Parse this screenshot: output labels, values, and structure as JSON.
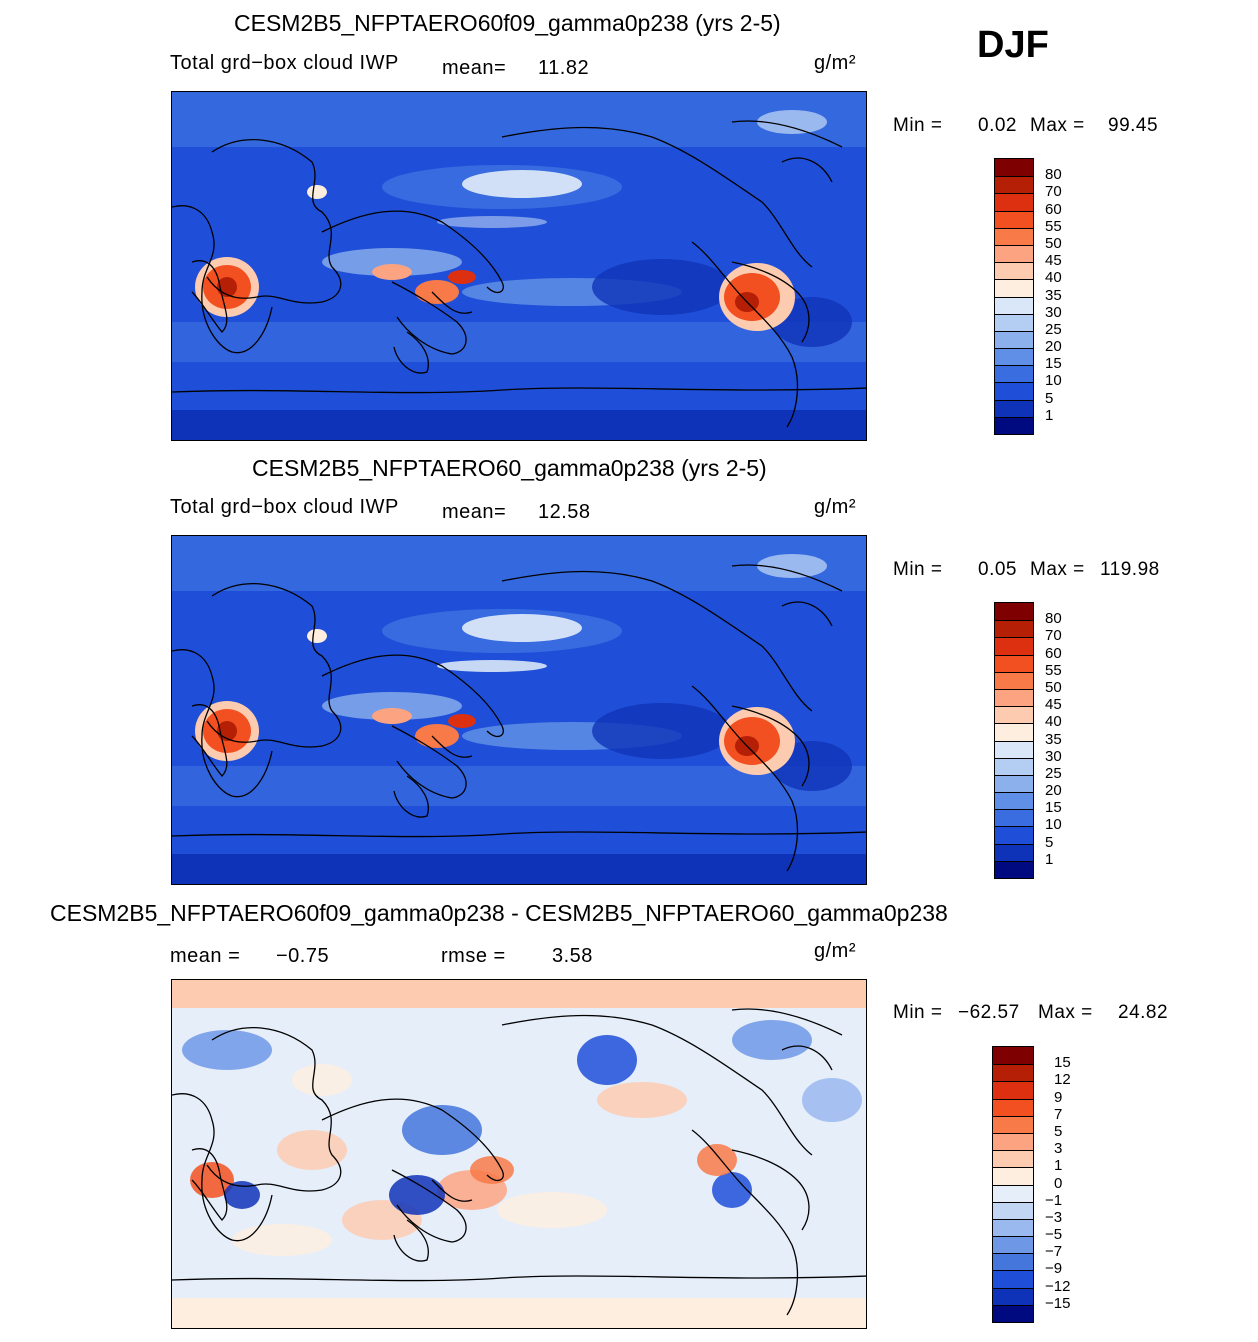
{
  "season": "DJF",
  "panels": [
    {
      "title": "CESM2B5_NFPTAERO60f09_gamma0p238 (yrs 2-5)",
      "variable": "Total grd−box cloud IWP",
      "mean_label": "mean=",
      "mean_value": "11.82",
      "units": "g/m²",
      "min_label": "Min =",
      "min_value": "0.02",
      "max_label": "Max =",
      "max_value": "99.45"
    },
    {
      "title": "CESM2B5_NFPTAERO60_gamma0p238 (yrs 2-5)",
      "variable": "Total grd−box cloud IWP",
      "mean_label": "mean=",
      "mean_value": "12.58",
      "units": "g/m²",
      "min_label": "Min =",
      "min_value": "0.05",
      "max_label": "Max =",
      "max_value": "119.98"
    },
    {
      "title": "CESM2B5_NFPTAERO60f09_gamma0p238 - CESM2B5_NFPTAERO60_gamma0p238",
      "mean_label": "mean =",
      "mean_value": "−0.75",
      "rmse_label": "rmse =",
      "rmse_value": "3.58",
      "units": "g/m²",
      "min_label": "Min =",
      "min_value": "−62.57",
      "max_label": "Max =",
      "max_value": "24.82"
    }
  ],
  "colorbar_abs": {
    "labels": [
      "80",
      "70",
      "60",
      "55",
      "50",
      "45",
      "40",
      "35",
      "30",
      "25",
      "20",
      "15",
      "10",
      "5",
      "1"
    ],
    "colors": [
      "#7f0000",
      "#b41f05",
      "#dc3010",
      "#f25020",
      "#f87a48",
      "#fca482",
      "#fdcbb0",
      "#fdeee0",
      "#d9e7f8",
      "#b4cdf2",
      "#8bb0ec",
      "#5f8fe6",
      "#3a6ee0",
      "#1f4fd8",
      "#0f33b8",
      "#000a80"
    ]
  },
  "colorbar_diff": {
    "labels": [
      "15",
      "12",
      "9",
      "7",
      "5",
      "3",
      "1",
      "0",
      "−1",
      "−3",
      "−5",
      "−7",
      "−9",
      "−12",
      "−15"
    ],
    "colors": [
      "#7f0000",
      "#b41f05",
      "#dc3010",
      "#f25020",
      "#f87a48",
      "#fca482",
      "#fdcbb0",
      "#fdeee0",
      "#e6eefa",
      "#c2d6f4",
      "#9ab9ee",
      "#6e98e6",
      "#4476dc",
      "#1f4fd8",
      "#0f33b8",
      "#000a80"
    ]
  }
}
